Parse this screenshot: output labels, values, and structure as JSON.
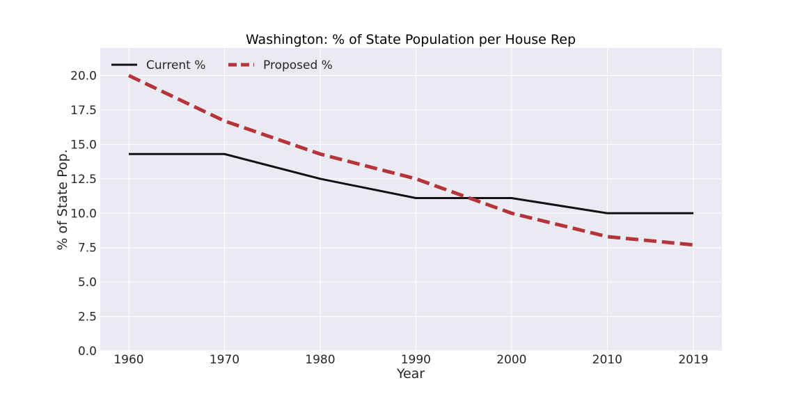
{
  "chart_data": {
    "type": "line",
    "title": "Washington: % of State Population per House Rep",
    "xlabel": "Year",
    "ylabel": "% of State Pop.",
    "x": [
      1960,
      1970,
      1980,
      1990,
      2000,
      2010,
      2019
    ],
    "x_tick_labels": [
      "1960",
      "1970",
      "1980",
      "1990",
      "2000",
      "2010",
      "2019"
    ],
    "ylim": [
      0,
      22
    ],
    "y_ticks": [
      0.0,
      2.5,
      5.0,
      7.5,
      10.0,
      12.5,
      15.0,
      17.5,
      20.0
    ],
    "y_tick_labels": [
      "0.0",
      "2.5",
      "5.0",
      "7.5",
      "10.0",
      "12.5",
      "15.0",
      "17.5",
      "20.0"
    ],
    "grid": true,
    "legend_position": "top-left",
    "series": [
      {
        "name": "Current %",
        "values": [
          14.3,
          14.3,
          12.5,
          11.1,
          11.1,
          10.0,
          10.0
        ],
        "color": "#111111",
        "style": "solid"
      },
      {
        "name": "Proposed %",
        "values": [
          20.0,
          16.7,
          14.3,
          12.5,
          10.0,
          8.3,
          7.7
        ],
        "color": "#b5343a",
        "style": "dashed"
      }
    ]
  }
}
